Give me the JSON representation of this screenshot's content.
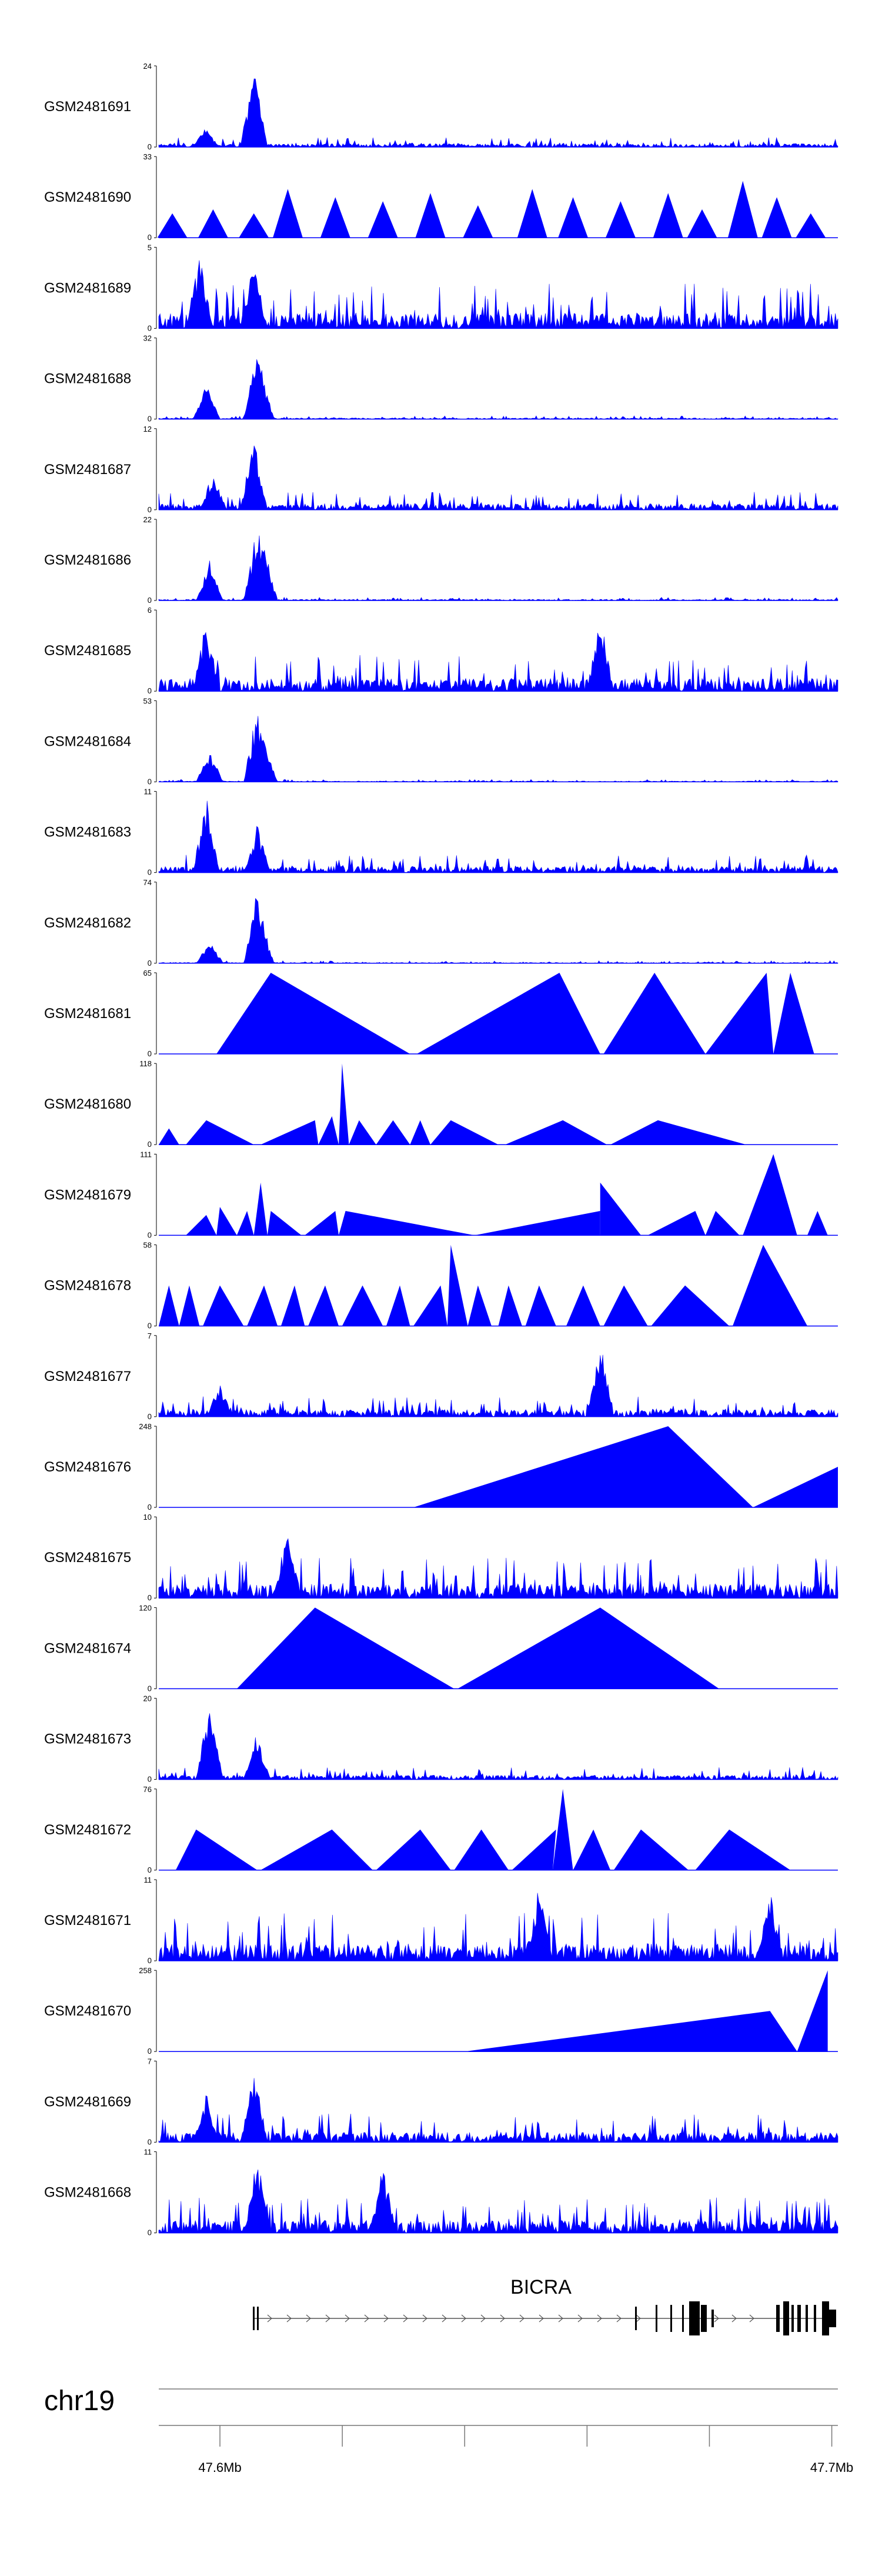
{
  "chart_data": {
    "type": "area",
    "title": "",
    "chromosome": "chr19",
    "gene": "BICRA",
    "color": "#0000ff",
    "x_range_mb": [
      47.59,
      47.701
    ],
    "x_tick_labels": [
      "47.6Mb",
      "47.7Mb"
    ],
    "tracks": [
      {
        "name": "GSM2481691",
        "ymax": 24,
        "ymin_label": "0",
        "style": "dense",
        "peaks": [
          {
            "x": 0.14,
            "h": 1.0
          },
          {
            "x": 0.07,
            "h": 0.25
          }
        ],
        "noise": 0.12
      },
      {
        "name": "GSM2481690",
        "ymax": 33,
        "ymin_label": "0",
        "style": "triangles",
        "peaks": [
          {
            "x": 0.02,
            "h": 0.3
          },
          {
            "x": 0.08,
            "h": 0.35
          },
          {
            "x": 0.14,
            "h": 0.3
          },
          {
            "x": 0.19,
            "h": 0.6
          },
          {
            "x": 0.26,
            "h": 0.5
          },
          {
            "x": 0.33,
            "h": 0.45
          },
          {
            "x": 0.4,
            "h": 0.55
          },
          {
            "x": 0.47,
            "h": 0.4
          },
          {
            "x": 0.55,
            "h": 0.6
          },
          {
            "x": 0.61,
            "h": 0.5
          },
          {
            "x": 0.68,
            "h": 0.45
          },
          {
            "x": 0.75,
            "h": 0.55
          },
          {
            "x": 0.8,
            "h": 0.35
          },
          {
            "x": 0.86,
            "h": 0.7
          },
          {
            "x": 0.91,
            "h": 0.5
          },
          {
            "x": 0.96,
            "h": 0.3
          }
        ],
        "noise": 0.0
      },
      {
        "name": "GSM2481689",
        "ymax": 5,
        "ymin_label": "0",
        "style": "dense",
        "peaks": [
          {
            "x": 0.06,
            "h": 0.95
          },
          {
            "x": 0.14,
            "h": 0.9
          }
        ],
        "noise": 0.55
      },
      {
        "name": "GSM2481688",
        "ymax": 32,
        "ymin_label": "0",
        "style": "dense",
        "peaks": [
          {
            "x": 0.07,
            "h": 0.45
          },
          {
            "x": 0.145,
            "h": 0.95
          },
          {
            "x": 0.15,
            "h": 0.7
          }
        ],
        "noise": 0.04
      },
      {
        "name": "GSM2481687",
        "ymax": 12,
        "ymin_label": "0",
        "style": "dense",
        "peaks": [
          {
            "x": 0.14,
            "h": 0.95
          },
          {
            "x": 0.08,
            "h": 0.5
          }
        ],
        "noise": 0.22
      },
      {
        "name": "GSM2481686",
        "ymax": 22,
        "ymin_label": "0",
        "style": "dense",
        "peaks": [
          {
            "x": 0.075,
            "h": 0.5
          },
          {
            "x": 0.145,
            "h": 0.95
          },
          {
            "x": 0.155,
            "h": 0.7
          }
        ],
        "noise": 0.04
      },
      {
        "name": "GSM2481685",
        "ymax": 6,
        "ymin_label": "0",
        "style": "dense",
        "peaks": [
          {
            "x": 0.07,
            "h": 0.9
          },
          {
            "x": 0.65,
            "h": 0.95
          }
        ],
        "noise": 0.45
      },
      {
        "name": "GSM2481684",
        "ymax": 53,
        "ymin_label": "0",
        "style": "dense",
        "peaks": [
          {
            "x": 0.075,
            "h": 0.4
          },
          {
            "x": 0.145,
            "h": 0.95
          },
          {
            "x": 0.155,
            "h": 0.5
          }
        ],
        "noise": 0.03
      },
      {
        "name": "GSM2481683",
        "ymax": 11,
        "ymin_label": "0",
        "style": "dense",
        "peaks": [
          {
            "x": 0.07,
            "h": 0.95
          },
          {
            "x": 0.145,
            "h": 0.6
          }
        ],
        "noise": 0.22
      },
      {
        "name": "GSM2481682",
        "ymax": 74,
        "ymin_label": "0",
        "style": "dense",
        "peaks": [
          {
            "x": 0.075,
            "h": 0.3
          },
          {
            "x": 0.145,
            "h": 0.95
          },
          {
            "x": 0.15,
            "h": 0.6
          }
        ],
        "noise": 0.03
      },
      {
        "name": "GSM2481681",
        "ymax": 65,
        "ymin_label": "0",
        "style": "segments",
        "peaks": [
          {
            "x0": 0.085,
            "xp": 0.165,
            "x1": 0.37,
            "h": 1.0
          },
          {
            "x0": 0.38,
            "xp": 0.59,
            "x1": 0.65,
            "h": 1.0
          },
          {
            "x0": 0.655,
            "xp": 0.73,
            "x1": 0.805,
            "h": 1.0
          },
          {
            "x0": 0.805,
            "xp": 0.895,
            "x1": 0.905,
            "h": 1.0
          },
          {
            "x0": 0.905,
            "xp": 0.93,
            "x1": 0.965,
            "h": 1.0
          }
        ],
        "noise": 0.0
      },
      {
        "name": "GSM2481680",
        "ymax": 118,
        "ymin_label": "0",
        "style": "segments",
        "peaks": [
          {
            "x0": 0.0,
            "xp": 0.015,
            "x1": 0.03,
            "h": 0.2
          },
          {
            "x0": 0.04,
            "xp": 0.07,
            "x1": 0.14,
            "h": 0.3
          },
          {
            "x0": 0.15,
            "xp": 0.23,
            "x1": 0.235,
            "h": 0.3
          },
          {
            "x0": 0.235,
            "xp": 0.255,
            "x1": 0.265,
            "h": 0.35
          },
          {
            "x0": 0.265,
            "xp": 0.27,
            "x1": 0.28,
            "h": 1.0
          },
          {
            "x0": 0.28,
            "xp": 0.295,
            "x1": 0.32,
            "h": 0.3
          },
          {
            "x0": 0.32,
            "xp": 0.345,
            "x1": 0.37,
            "h": 0.3
          },
          {
            "x0": 0.37,
            "xp": 0.385,
            "x1": 0.4,
            "h": 0.3
          },
          {
            "x0": 0.4,
            "xp": 0.43,
            "x1": 0.5,
            "h": 0.3
          },
          {
            "x0": 0.51,
            "xp": 0.595,
            "x1": 0.66,
            "h": 0.3
          },
          {
            "x0": 0.665,
            "xp": 0.735,
            "x1": 0.865,
            "h": 0.3
          }
        ],
        "noise": 0.0
      },
      {
        "name": "GSM2481679",
        "ymax": 111,
        "ymin_label": "0",
        "style": "segments",
        "peaks": [
          {
            "x0": 0.04,
            "xp": 0.07,
            "x1": 0.085,
            "h": 0.25
          },
          {
            "x0": 0.085,
            "xp": 0.09,
            "x1": 0.115,
            "h": 0.35
          },
          {
            "x0": 0.115,
            "xp": 0.13,
            "x1": 0.14,
            "h": 0.3
          },
          {
            "x0": 0.14,
            "xp": 0.15,
            "x1": 0.16,
            "h": 0.65
          },
          {
            "x0": 0.16,
            "xp": 0.165,
            "x1": 0.21,
            "h": 0.3
          },
          {
            "x0": 0.215,
            "xp": 0.26,
            "x1": 0.265,
            "h": 0.3
          },
          {
            "x0": 0.265,
            "xp": 0.275,
            "x1": 0.465,
            "h": 0.3
          },
          {
            "x0": 0.465,
            "xp": 0.65,
            "x1": 0.65,
            "h": 0.3
          },
          {
            "x0": 0.65,
            "xp": 0.65,
            "x1": 0.71,
            "h": 0.65
          },
          {
            "x0": 0.72,
            "xp": 0.79,
            "x1": 0.805,
            "h": 0.3
          },
          {
            "x0": 0.805,
            "xp": 0.82,
            "x1": 0.855,
            "h": 0.3
          },
          {
            "x0": 0.86,
            "xp": 0.905,
            "x1": 0.94,
            "h": 1.0
          },
          {
            "x0": 0.955,
            "xp": 0.97,
            "x1": 0.985,
            "h": 0.3
          }
        ],
        "noise": 0.0
      },
      {
        "name": "GSM2481678",
        "ymax": 58,
        "ymin_label": "0",
        "style": "segments",
        "peaks": [
          {
            "x0": 0.0,
            "xp": 0.015,
            "x1": 0.03,
            "h": 0.5
          },
          {
            "x0": 0.03,
            "xp": 0.045,
            "x1": 0.06,
            "h": 0.5
          },
          {
            "x0": 0.065,
            "xp": 0.09,
            "x1": 0.125,
            "h": 0.5
          },
          {
            "x0": 0.13,
            "xp": 0.155,
            "x1": 0.175,
            "h": 0.5
          },
          {
            "x0": 0.18,
            "xp": 0.2,
            "x1": 0.215,
            "h": 0.5
          },
          {
            "x0": 0.22,
            "xp": 0.245,
            "x1": 0.265,
            "h": 0.5
          },
          {
            "x0": 0.27,
            "xp": 0.3,
            "x1": 0.33,
            "h": 0.5
          },
          {
            "x0": 0.335,
            "xp": 0.355,
            "x1": 0.37,
            "h": 0.5
          },
          {
            "x0": 0.375,
            "xp": 0.415,
            "x1": 0.425,
            "h": 0.5
          },
          {
            "x0": 0.425,
            "xp": 0.43,
            "x1": 0.455,
            "h": 1.0
          },
          {
            "x0": 0.455,
            "xp": 0.47,
            "x1": 0.49,
            "h": 0.5
          },
          {
            "x0": 0.5,
            "xp": 0.515,
            "x1": 0.535,
            "h": 0.5
          },
          {
            "x0": 0.54,
            "xp": 0.56,
            "x1": 0.585,
            "h": 0.5
          },
          {
            "x0": 0.6,
            "xp": 0.625,
            "x1": 0.65,
            "h": 0.5
          },
          {
            "x0": 0.655,
            "xp": 0.685,
            "x1": 0.72,
            "h": 0.5
          },
          {
            "x0": 0.725,
            "xp": 0.775,
            "x1": 0.84,
            "h": 0.5
          },
          {
            "x0": 0.845,
            "xp": 0.89,
            "x1": 0.955,
            "h": 1.0
          }
        ],
        "noise": 0.0
      },
      {
        "name": "GSM2481677",
        "ymax": 7,
        "ymin_label": "0",
        "style": "dense",
        "peaks": [
          {
            "x": 0.09,
            "h": 0.45
          },
          {
            "x": 0.65,
            "h": 1.0
          }
        ],
        "noise": 0.25
      },
      {
        "name": "GSM2481676",
        "ymax": 248,
        "ymin_label": "0",
        "style": "segments",
        "peaks": [
          {
            "x0": 0.375,
            "xp": 0.75,
            "x1": 0.875,
            "h": 1.0
          },
          {
            "x0": 0.875,
            "xp": 1.0,
            "x1": 1.0,
            "h": 0.5
          }
        ],
        "noise": 0.0
      },
      {
        "name": "GSM2481675",
        "ymax": 10,
        "ymin_label": "0",
        "style": "dense",
        "peaks": [
          {
            "x": 0.19,
            "h": 0.95
          }
        ],
        "noise": 0.5
      },
      {
        "name": "GSM2481674",
        "ymax": 120,
        "ymin_label": "0",
        "style": "segments",
        "peaks": [
          {
            "x0": 0.115,
            "xp": 0.23,
            "x1": 0.435,
            "h": 1.0
          },
          {
            "x0": 0.44,
            "xp": 0.65,
            "x1": 0.825,
            "h": 1.0
          }
        ],
        "noise": 0.0
      },
      {
        "name": "GSM2481673",
        "ymax": 20,
        "ymin_label": "0",
        "style": "dense",
        "peaks": [
          {
            "x": 0.075,
            "h": 1.0
          },
          {
            "x": 0.145,
            "h": 0.6
          }
        ],
        "noise": 0.15
      },
      {
        "name": "GSM2481672",
        "ymax": 76,
        "ymin_label": "0",
        "style": "segments",
        "peaks": [
          {
            "x0": 0.025,
            "xp": 0.055,
            "x1": 0.145,
            "h": 0.5
          },
          {
            "x0": 0.15,
            "xp": 0.255,
            "x1": 0.315,
            "h": 0.5
          },
          {
            "x0": 0.32,
            "xp": 0.385,
            "x1": 0.43,
            "h": 0.5
          },
          {
            "x0": 0.435,
            "xp": 0.475,
            "x1": 0.515,
            "h": 0.5
          },
          {
            "x0": 0.52,
            "xp": 0.585,
            "x1": 0.58,
            "h": 0.5
          },
          {
            "x0": 0.58,
            "xp": 0.595,
            "x1": 0.61,
            "h": 1.0
          },
          {
            "x0": 0.61,
            "xp": 0.64,
            "x1": 0.665,
            "h": 0.5
          },
          {
            "x0": 0.67,
            "xp": 0.71,
            "x1": 0.78,
            "h": 0.5
          },
          {
            "x0": 0.79,
            "xp": 0.84,
            "x1": 0.93,
            "h": 0.5
          }
        ],
        "noise": 0.0
      },
      {
        "name": "GSM2481671",
        "ymax": 11,
        "ymin_label": "0",
        "style": "dense",
        "peaks": [
          {
            "x": 0.56,
            "h": 0.95
          },
          {
            "x": 0.9,
            "h": 0.95
          }
        ],
        "noise": 0.6
      },
      {
        "name": "GSM2481670",
        "ymax": 258,
        "ymin_label": "0",
        "style": "segments",
        "peaks": [
          {
            "x0": 0.45,
            "xp": 0.9,
            "x1": 0.94,
            "h": 0.5
          },
          {
            "x0": 0.94,
            "xp": 0.985,
            "x1": 0.985,
            "h": 1.0
          }
        ],
        "noise": 0.0
      },
      {
        "name": "GSM2481669",
        "ymax": 7,
        "ymin_label": "0",
        "style": "dense",
        "peaks": [
          {
            "x": 0.14,
            "h": 1.0
          },
          {
            "x": 0.07,
            "h": 0.6
          }
        ],
        "noise": 0.35
      },
      {
        "name": "GSM2481668",
        "ymax": 11,
        "ymin_label": "0",
        "style": "dense",
        "peaks": [
          {
            "x": 0.145,
            "h": 0.95
          },
          {
            "x": 0.33,
            "h": 0.9
          }
        ],
        "noise": 0.45
      }
    ]
  }
}
